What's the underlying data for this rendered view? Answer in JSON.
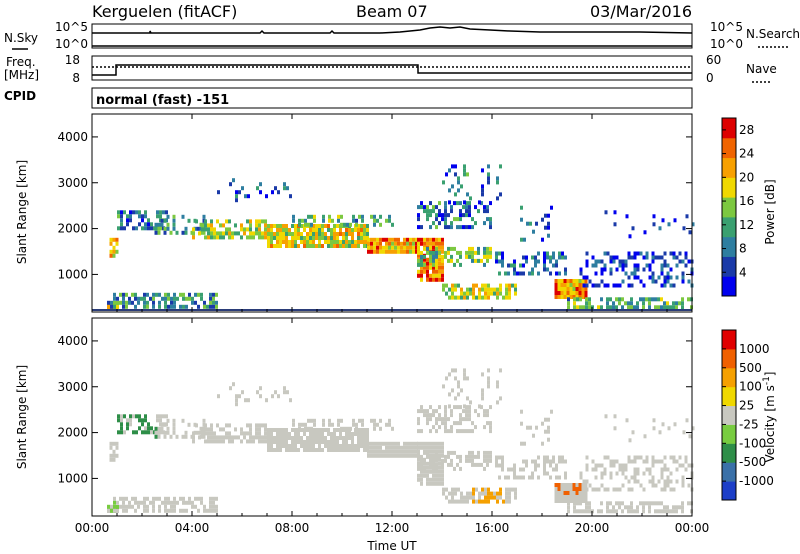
{
  "header": {
    "station": "Kerguelen (fitACF)",
    "beam": "Beam 07",
    "date": "03/Mar/2016"
  },
  "top_panels": {
    "nsky_label": "N.Sky",
    "nsky_top": "10^5",
    "nsky_bottom": "10^0",
    "nsearch_label": "N.Search",
    "nsearch_top": "10^5",
    "nsearch_bottom": "10^0",
    "freq_label": "Freq.",
    "freq_unit": "[MHz]",
    "freq_top": "18",
    "freq_bottom": "8",
    "nave_label": "Nave",
    "nave_top": "60",
    "nave_bottom": "0",
    "cpid_label": "CPID",
    "cpid_text": "normal (fast) -151"
  },
  "chart_data": [
    {
      "type": "heatmap",
      "title": "",
      "xlabel": "",
      "ylabel": "Slant Range [km]",
      "xlim": [
        0,
        24
      ],
      "ylim": [
        180,
        4500
      ],
      "x_ticks": [
        "00:00",
        "04:00",
        "08:00",
        "12:00",
        "16:00",
        "20:00",
        "00:00"
      ],
      "y_ticks": [
        "1000",
        "2000",
        "3000",
        "4000"
      ],
      "colorbar": {
        "label": "Power [dB]",
        "ticks": [
          "4",
          "8",
          "12",
          "16",
          "20",
          "24",
          "28"
        ],
        "range": [
          0,
          30
        ],
        "colors": [
          "#0000ee",
          "#1a3aa8",
          "#2e7ea0",
          "#3aa070",
          "#7cc840",
          "#f0d800",
          "#f7a000",
          "#f06400",
          "#dd0000"
        ]
      }
    },
    {
      "type": "heatmap",
      "title": "",
      "xlabel": "Time UT",
      "ylabel": "Slant Range [km]",
      "xlim": [
        0,
        24
      ],
      "ylim": [
        180,
        4500
      ],
      "x_ticks": [
        "00:00",
        "04:00",
        "08:00",
        "12:00",
        "16:00",
        "20:00",
        "00:00"
      ],
      "y_ticks": [
        "1000",
        "2000",
        "3000",
        "4000"
      ],
      "colorbar": {
        "label": "Velocity [m s^-1]",
        "ticks": [
          "1000",
          "500",
          "100",
          "25",
          "-25",
          "-100",
          "-500",
          "-1000"
        ],
        "colors": [
          "#1c3ec8",
          "#3a70a8",
          "#2e8e48",
          "#78cc40",
          "#c8c8c0",
          "#f0d800",
          "#f5a000",
          "#f06000",
          "#e00000"
        ]
      }
    }
  ]
}
